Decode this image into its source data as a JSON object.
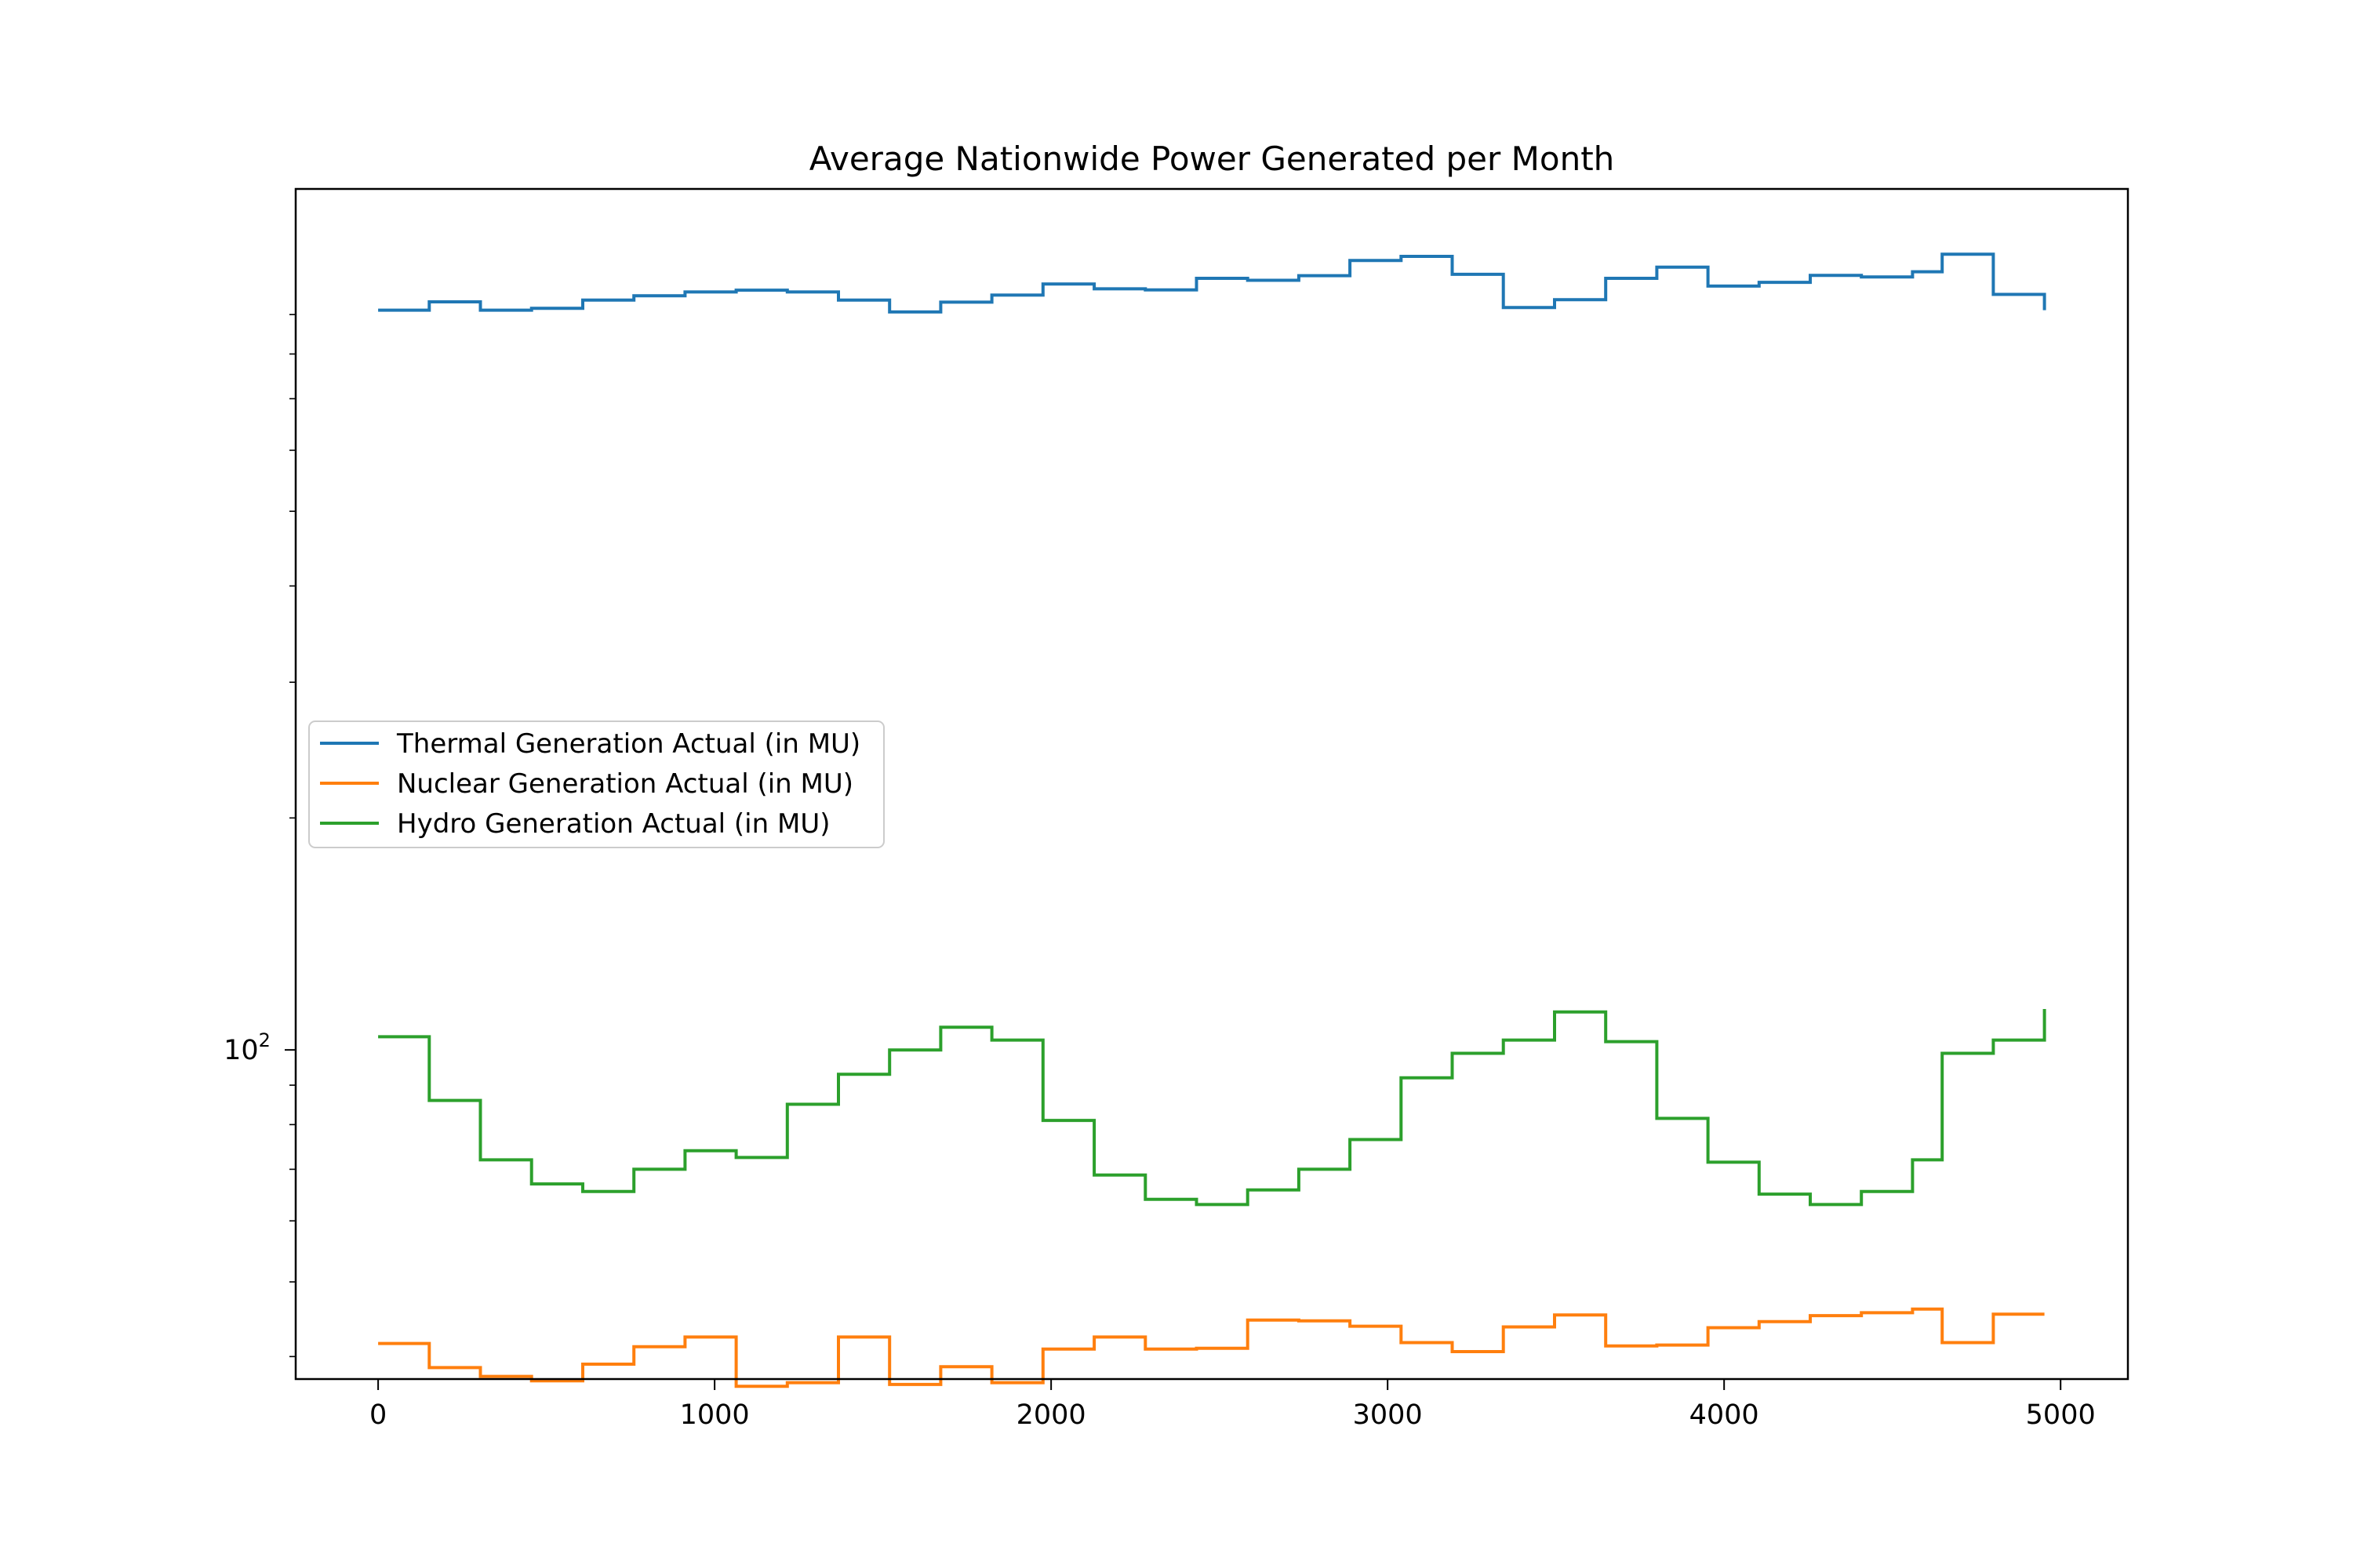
{
  "chart_data": {
    "type": "line",
    "title": "Average Nationwide Power Generated per Month",
    "xlabel": "",
    "ylabel": "",
    "yscale": "log",
    "xlim": [
      -245,
      5200
    ],
    "ylim": [
      37.4,
      1310
    ],
    "x_ticks": [
      {
        "value": 0,
        "label": "0"
      },
      {
        "value": 1000,
        "label": "1000"
      },
      {
        "value": 2000,
        "label": "2000"
      },
      {
        "value": 3000,
        "label": "3000"
      },
      {
        "value": 4000,
        "label": "4000"
      },
      {
        "value": 5000,
        "label": "5000"
      }
    ],
    "y_ticks": [
      {
        "value": 100,
        "label_base": "10",
        "label_exp": "2"
      }
    ],
    "grid": false,
    "legend_position": "center-left",
    "step": "post",
    "x": [
      0,
      152,
      304,
      456,
      608,
      760,
      912,
      1064,
      1216,
      1368,
      1520,
      1672,
      1824,
      1976,
      2128,
      2280,
      2432,
      2584,
      2736,
      2888,
      3040,
      3192,
      3344,
      3496,
      3648,
      3800,
      3952,
      4104,
      4256,
      4408,
      4560,
      4648,
      4800,
      4952
    ],
    "series": [
      {
        "name": "Thermal Generation Actual (in MU)",
        "color": "#1f77b4",
        "values": [
          912,
          935,
          912,
          917,
          940,
          952,
          963,
          968,
          963,
          940,
          907,
          934,
          954,
          986,
          972,
          969,
          1003,
          997,
          1011,
          1058,
          1071,
          1015,
          919,
          941,
          1003,
          1037,
          980,
          991,
          1012,
          1007,
          1023,
          1078,
          956,
          912
        ]
      },
      {
        "name": "Nuclear Generation Actual (in MU)",
        "color": "#ff7f0e",
        "values": [
          41.6,
          38.7,
          37.7,
          37.2,
          39.1,
          41.2,
          42.4,
          36.6,
          37.0,
          42.4,
          36.8,
          38.8,
          37.0,
          40.9,
          42.4,
          40.9,
          41.0,
          44.6,
          44.5,
          43.8,
          41.7,
          40.6,
          43.7,
          45.3,
          41.3,
          41.4,
          43.6,
          44.4,
          45.2,
          45.6,
          46.1,
          41.7,
          45.4,
          45.4
        ]
      },
      {
        "name": "Hydro Generation Actual (in MU)",
        "color": "#2ca02c",
        "values": [
          104,
          86,
          72,
          67,
          65.5,
          70,
          74,
          72.5,
          85,
          93,
          100,
          107,
          103,
          81,
          68.8,
          64,
          63,
          65.8,
          70,
          76.5,
          92,
          99,
          103,
          112,
          102.5,
          81.5,
          71.5,
          65,
          63,
          65.5,
          72,
          99,
          103,
          113
        ]
      }
    ]
  }
}
